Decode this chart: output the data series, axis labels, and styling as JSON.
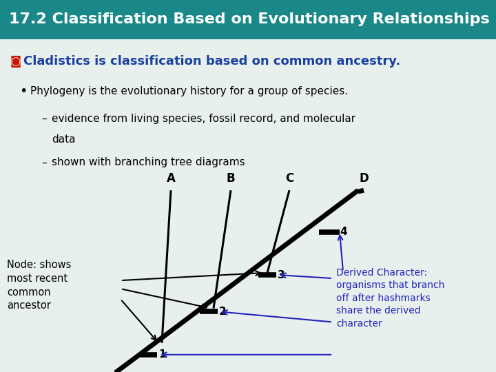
{
  "title": "17.2 Classification Based on Evolutionary Relationships",
  "title_bg_top": "#1a9090",
  "title_bg_bot": "#0d6060",
  "title_color": "#ffffff",
  "title_fontsize": 16,
  "subtitle": "Cladistics is classification based on common ancestry.",
  "subtitle_color": "#1a3fa0",
  "subtitle_fontsize": 13,
  "bullet1": "Phylogeny is the evolutionary history for a group of species.",
  "sub1": "evidence from living species, fossil record, and molecular\n        data",
  "sub2": "shown with branching tree diagrams",
  "node_label": "Node: shows\nmost recent\ncommon\nancestor",
  "derived_label": "Derived Character:\norganisms that branch\noff after hashmarks\nshare the derived\ncharacter",
  "bg_color": "#e8f0ee",
  "text_color": "#000000",
  "line_color": "#000000",
  "arrow_color": "#2222bb",
  "species_labels": [
    "A",
    "B",
    "C",
    "D"
  ],
  "hashmark_labels": [
    "1",
    "2",
    "3",
    "4"
  ]
}
